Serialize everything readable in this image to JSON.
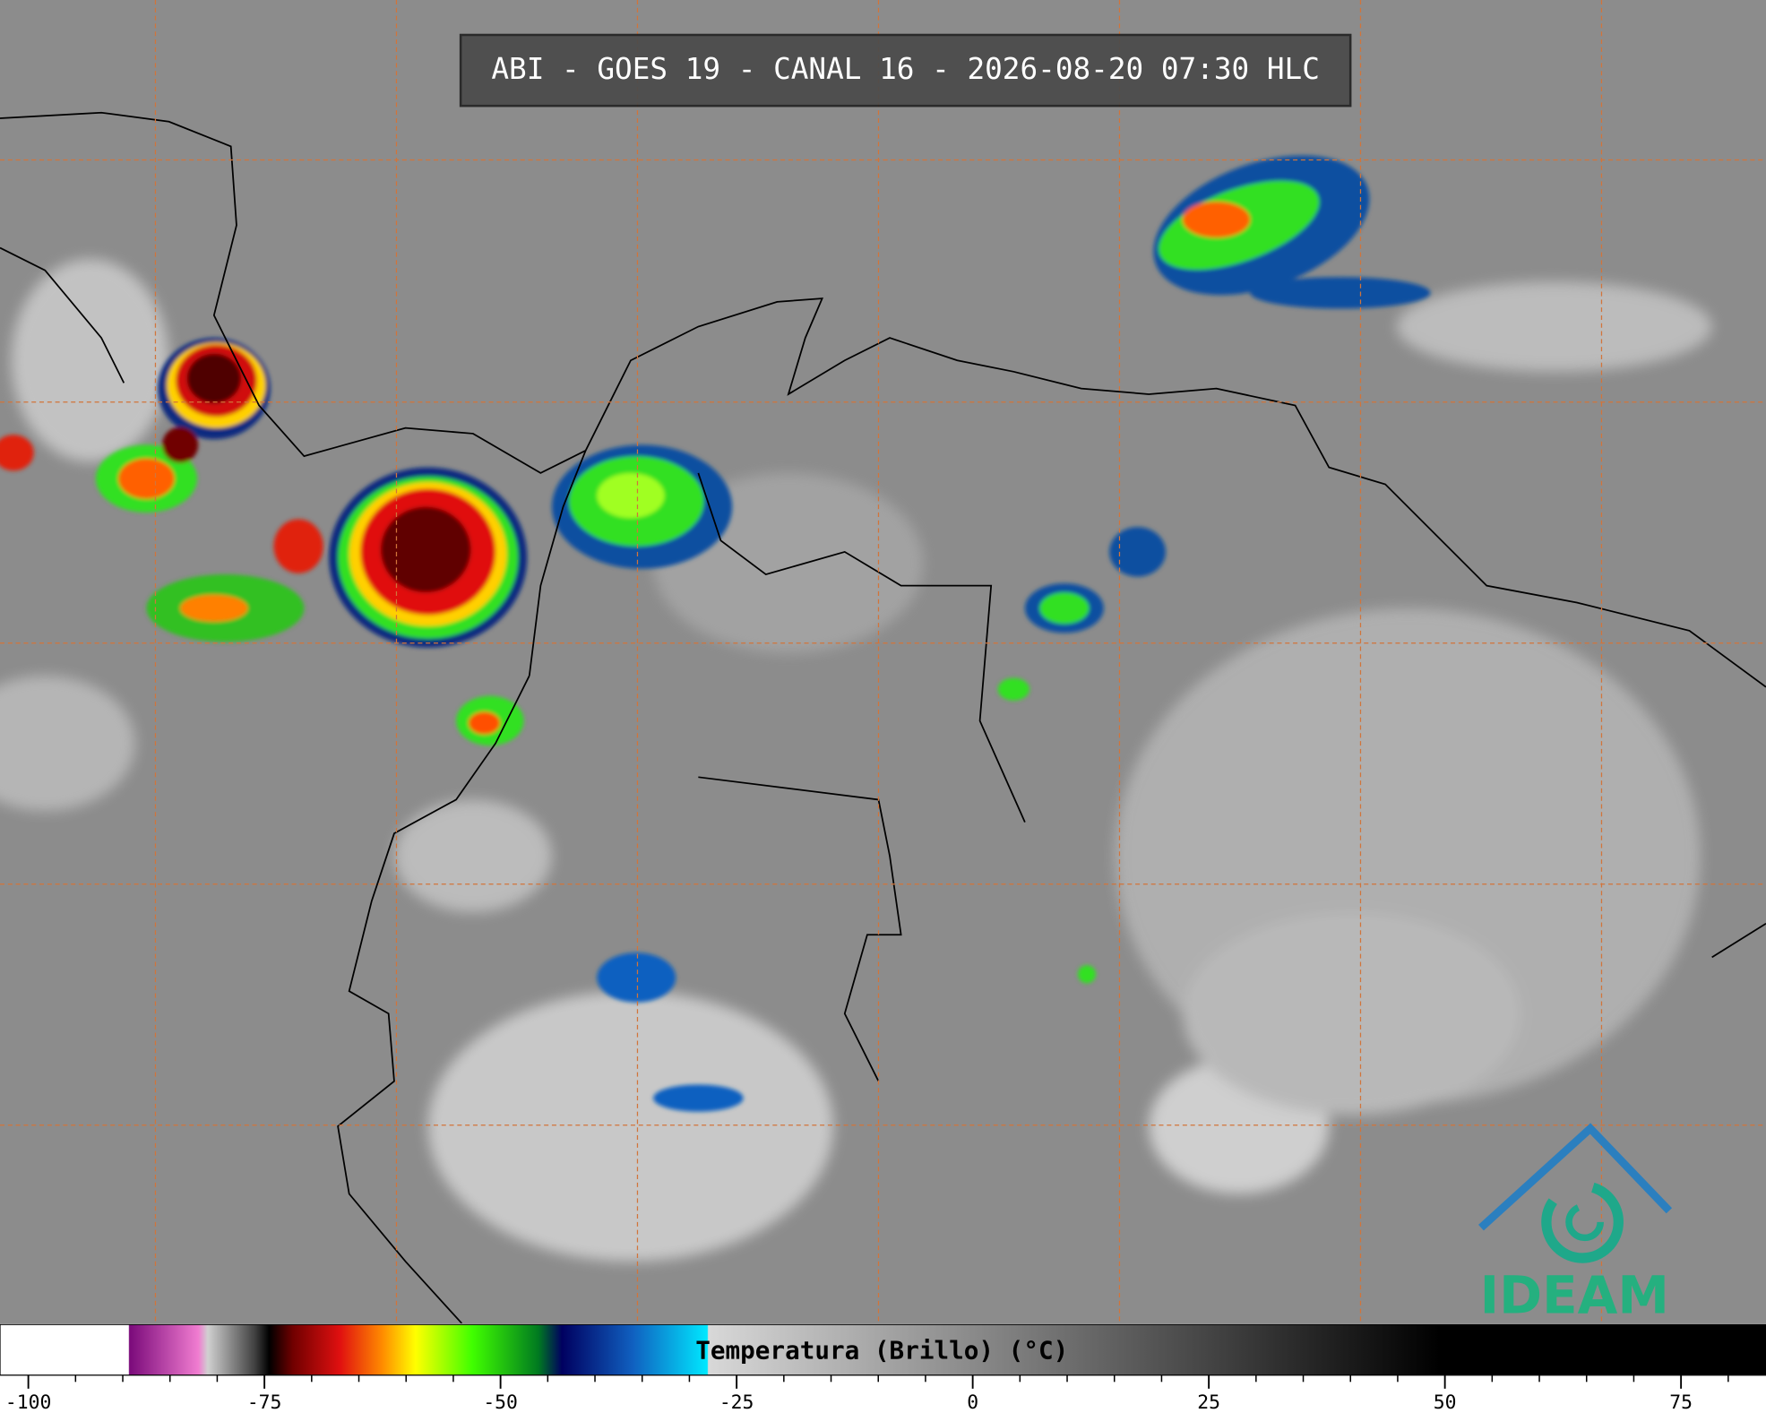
{
  "header": {
    "title": "ABI - GOES 19 - CANAL 16 - 2026-08-20 07:30 HLC"
  },
  "colorbar": {
    "label": "Temperatura (Brillo) (°C)",
    "range": [
      -103,
      84
    ],
    "ticks": [
      -100,
      -75,
      -50,
      -25,
      0,
      25,
      50,
      75
    ],
    "minor_ticks": [
      -95,
      -90,
      -85,
      -80,
      -70,
      -65,
      -60,
      -55,
      -45,
      -40,
      -35,
      -30,
      -20,
      -15,
      -10,
      -5,
      5,
      10,
      15,
      20,
      30,
      35,
      40,
      45,
      55,
      60,
      65,
      70,
      80
    ],
    "colormap": [
      {
        "value": -103,
        "color": "#ffffff"
      },
      {
        "value": -89.4,
        "color": "#ffffff"
      },
      {
        "value": -89.3,
        "color": "#7a0a7a"
      },
      {
        "value": -82,
        "color": "#f07cd0"
      },
      {
        "value": -81,
        "color": "#d0d0d0"
      },
      {
        "value": -76,
        "color": "#404040"
      },
      {
        "value": -74.5,
        "color": "#000000"
      },
      {
        "value": -72,
        "color": "#700000"
      },
      {
        "value": -67,
        "color": "#e01010"
      },
      {
        "value": -62.5,
        "color": "#ff8c00"
      },
      {
        "value": -59,
        "color": "#ffff00"
      },
      {
        "value": -53,
        "color": "#40ff00"
      },
      {
        "value": -46,
        "color": "#007a20"
      },
      {
        "value": -43.5,
        "color": "#000060"
      },
      {
        "value": -36,
        "color": "#1060c0"
      },
      {
        "value": -28.1,
        "color": "#00e8ff"
      },
      {
        "value": -28,
        "color": "#d8d8d8"
      },
      {
        "value": 49.5,
        "color": "#000000"
      },
      {
        "value": 84,
        "color": "#000000"
      }
    ]
  },
  "logo": {
    "text": "IDEAM"
  }
}
